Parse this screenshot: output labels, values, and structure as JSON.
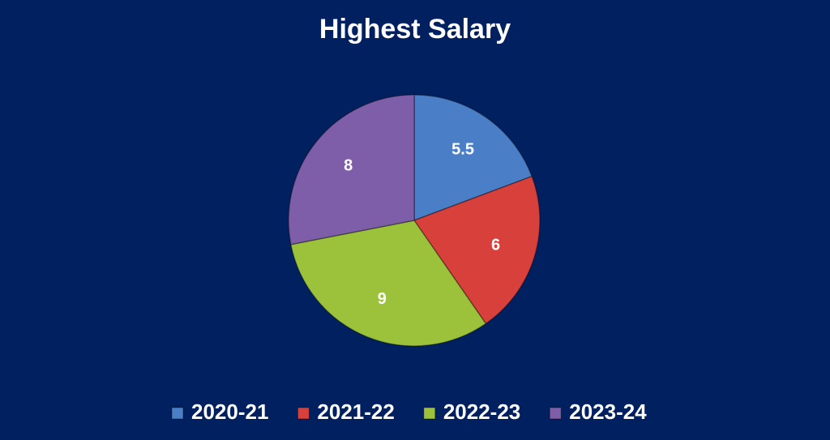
{
  "chart_data": {
    "type": "pie",
    "title": "Highest Salary",
    "categories": [
      "2020-21",
      "2021-22",
      "2022-23",
      "2023-24"
    ],
    "values": [
      5.5,
      6,
      9,
      8
    ],
    "colors": [
      "#4a7fc8",
      "#d8403c",
      "#9cc23c",
      "#7e5ea8"
    ],
    "legend": "bottom"
  }
}
